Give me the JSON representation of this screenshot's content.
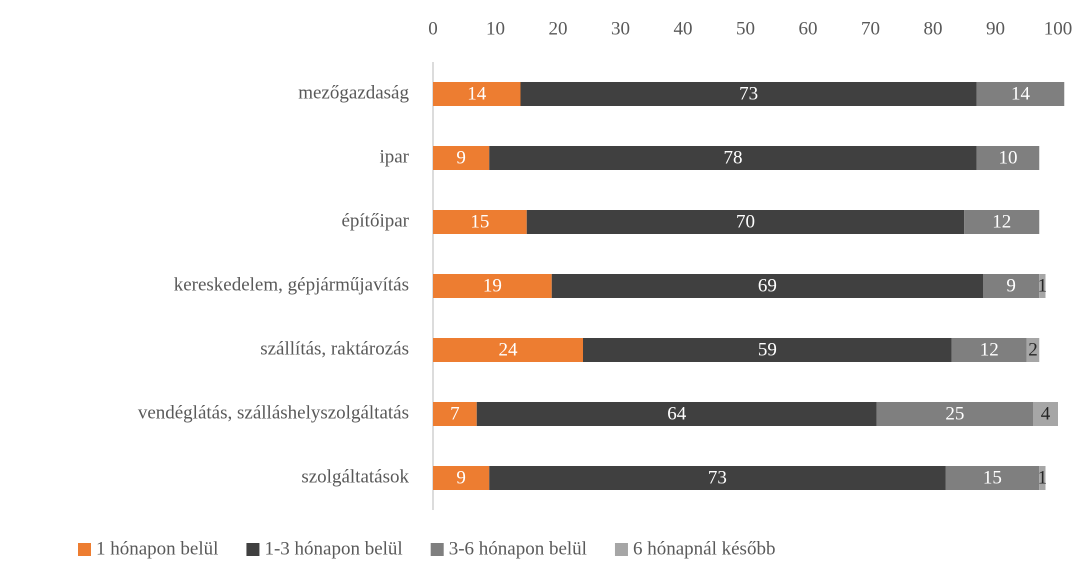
{
  "chart_data": {
    "type": "stacked-bar-horizontal",
    "categories": [
      "mezőgazdaság",
      "ipar",
      "építőipar",
      "kereskedelem, gépjárműjavítás",
      "szállítás, raktározás",
      "vendéglátás, szálláshelyszolgáltatás",
      "szolgáltatások"
    ],
    "series": [
      {
        "name": "1 hónapon belül",
        "color": "#ED7D31",
        "values": [
          14,
          9,
          15,
          19,
          24,
          7,
          9
        ]
      },
      {
        "name": "1-3 hónapon belül",
        "color": "#404040",
        "values": [
          73,
          78,
          70,
          69,
          59,
          64,
          73
        ]
      },
      {
        "name": "3-6 hónapon belül",
        "color": "#7F7F7F",
        "values": [
          14,
          10,
          12,
          9,
          12,
          25,
          15
        ]
      },
      {
        "name": "6 hónapnál később",
        "color": "#A6A6A6",
        "values": [
          null,
          null,
          null,
          1,
          2,
          4,
          1
        ]
      }
    ],
    "xlim": [
      0,
      100
    ],
    "xticks": [
      0,
      10,
      20,
      30,
      40,
      50,
      60,
      70,
      80,
      90,
      100
    ],
    "legend": "bottom"
  }
}
